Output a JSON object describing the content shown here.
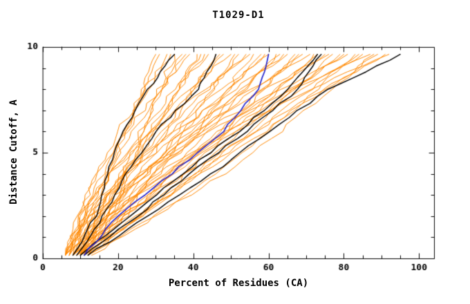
{
  "chart_data": {
    "type": "line",
    "title": "T1029-D1",
    "xlabel": "Percent of Residues (CA)",
    "ylabel": "Distance Cutoff, A",
    "xlim": [
      0,
      104
    ],
    "ylim": [
      0,
      10
    ],
    "x_ticks": [
      0,
      20,
      40,
      60,
      80,
      100
    ],
    "x_minor_step": 5,
    "y_ticks": [
      0,
      5,
      10
    ],
    "y_minor_step": 1,
    "grid": false,
    "legend": "none",
    "colors": {
      "ensemble": "#ff8800",
      "highlight_black": "#000000",
      "highlight_blue": "#2222cc",
      "axis": "#000000"
    },
    "y_levels": [
      0.15,
      2,
      4,
      6,
      8,
      9.65
    ],
    "series": {
      "orange_models_x": [
        [
          6,
          12,
          18,
          22,
          27,
          30
        ],
        [
          7,
          11,
          17,
          22,
          27,
          31
        ],
        [
          7,
          11,
          16,
          22,
          28,
          33
        ],
        [
          8,
          10,
          14,
          20,
          27,
          34
        ],
        [
          11,
          17,
          22,
          27,
          31,
          35
        ],
        [
          11,
          16,
          21,
          27,
          32,
          37
        ],
        [
          6,
          10,
          17,
          24,
          32,
          38
        ],
        [
          6,
          9,
          14,
          22,
          31,
          39
        ],
        [
          9,
          17,
          24,
          30,
          36,
          41
        ],
        [
          9,
          15,
          22,
          29,
          36,
          42
        ],
        [
          10,
          14,
          21,
          28,
          36,
          43
        ],
        [
          10,
          13,
          18,
          26,
          35,
          44
        ],
        [
          7,
          17,
          26,
          33,
          40,
          46
        ],
        [
          7,
          15,
          23,
          32,
          40,
          47
        ],
        [
          8,
          13,
          21,
          30,
          40,
          48
        ],
        [
          8,
          11,
          18,
          28,
          39,
          50
        ],
        [
          12,
          21,
          30,
          38,
          45,
          51
        ],
        [
          11,
          19,
          28,
          36,
          45,
          52
        ],
        [
          6,
          12,
          22,
          33,
          44,
          54
        ],
        [
          6,
          10,
          18,
          29,
          43,
          55
        ],
        [
          10,
          21,
          31,
          41,
          49,
          56
        ],
        [
          10,
          19,
          29,
          40,
          50,
          58
        ],
        [
          10,
          17,
          27,
          37,
          49,
          59
        ],
        [
          10,
          14,
          22,
          34,
          47,
          60
        ],
        [
          8,
          22,
          34,
          44,
          54,
          62
        ],
        [
          8,
          18,
          30,
          42,
          53,
          63
        ],
        [
          8,
          16,
          27,
          39,
          53,
          64
        ],
        [
          8,
          13,
          22,
          35,
          51,
          65
        ],
        [
          12,
          26,
          38,
          49,
          59,
          67
        ],
        [
          12,
          22,
          34,
          47,
          58,
          68
        ],
        [
          6,
          15,
          27,
          41,
          56,
          69
        ],
        [
          6,
          11,
          22,
          37,
          55,
          71
        ],
        [
          11,
          26,
          40,
          52,
          63,
          72
        ],
        [
          10,
          22,
          35,
          49,
          62,
          73
        ],
        [
          10,
          19,
          32,
          47,
          62,
          75
        ],
        [
          10,
          15,
          26,
          41,
          59,
          76
        ],
        [
          9,
          26,
          41,
          55,
          67,
          77
        ],
        [
          8,
          21,
          37,
          52,
          67,
          79
        ],
        [
          8,
          18,
          33,
          49,
          66,
          80
        ],
        [
          8,
          14,
          26,
          42,
          63,
          81
        ],
        [
          13,
          30,
          46,
          60,
          73,
          83
        ],
        [
          12,
          26,
          41,
          57,
          71,
          84
        ],
        [
          6,
          17,
          33,
          51,
          69,
          85
        ],
        [
          6,
          13,
          26,
          44,
          67,
          87
        ],
        [
          12,
          30,
          48,
          63,
          77,
          88
        ],
        [
          10,
          25,
          42,
          59,
          75,
          89
        ],
        [
          10,
          21,
          38,
          56,
          75,
          91
        ],
        [
          10,
          17,
          30,
          49,
          71,
          92
        ]
      ],
      "black_models_x": [
        [
          8,
          14,
          17,
          21,
          28,
          35
        ],
        [
          9,
          16,
          22,
          30,
          41,
          46
        ],
        [
          10,
          23,
          37,
          52,
          65,
          73
        ],
        [
          12,
          28,
          45,
          60,
          76,
          95
        ],
        [
          11,
          25,
          39,
          54,
          68,
          74
        ]
      ],
      "blue_model_x": [
        11,
        20,
        34,
        48,
        57,
        60
      ]
    }
  }
}
